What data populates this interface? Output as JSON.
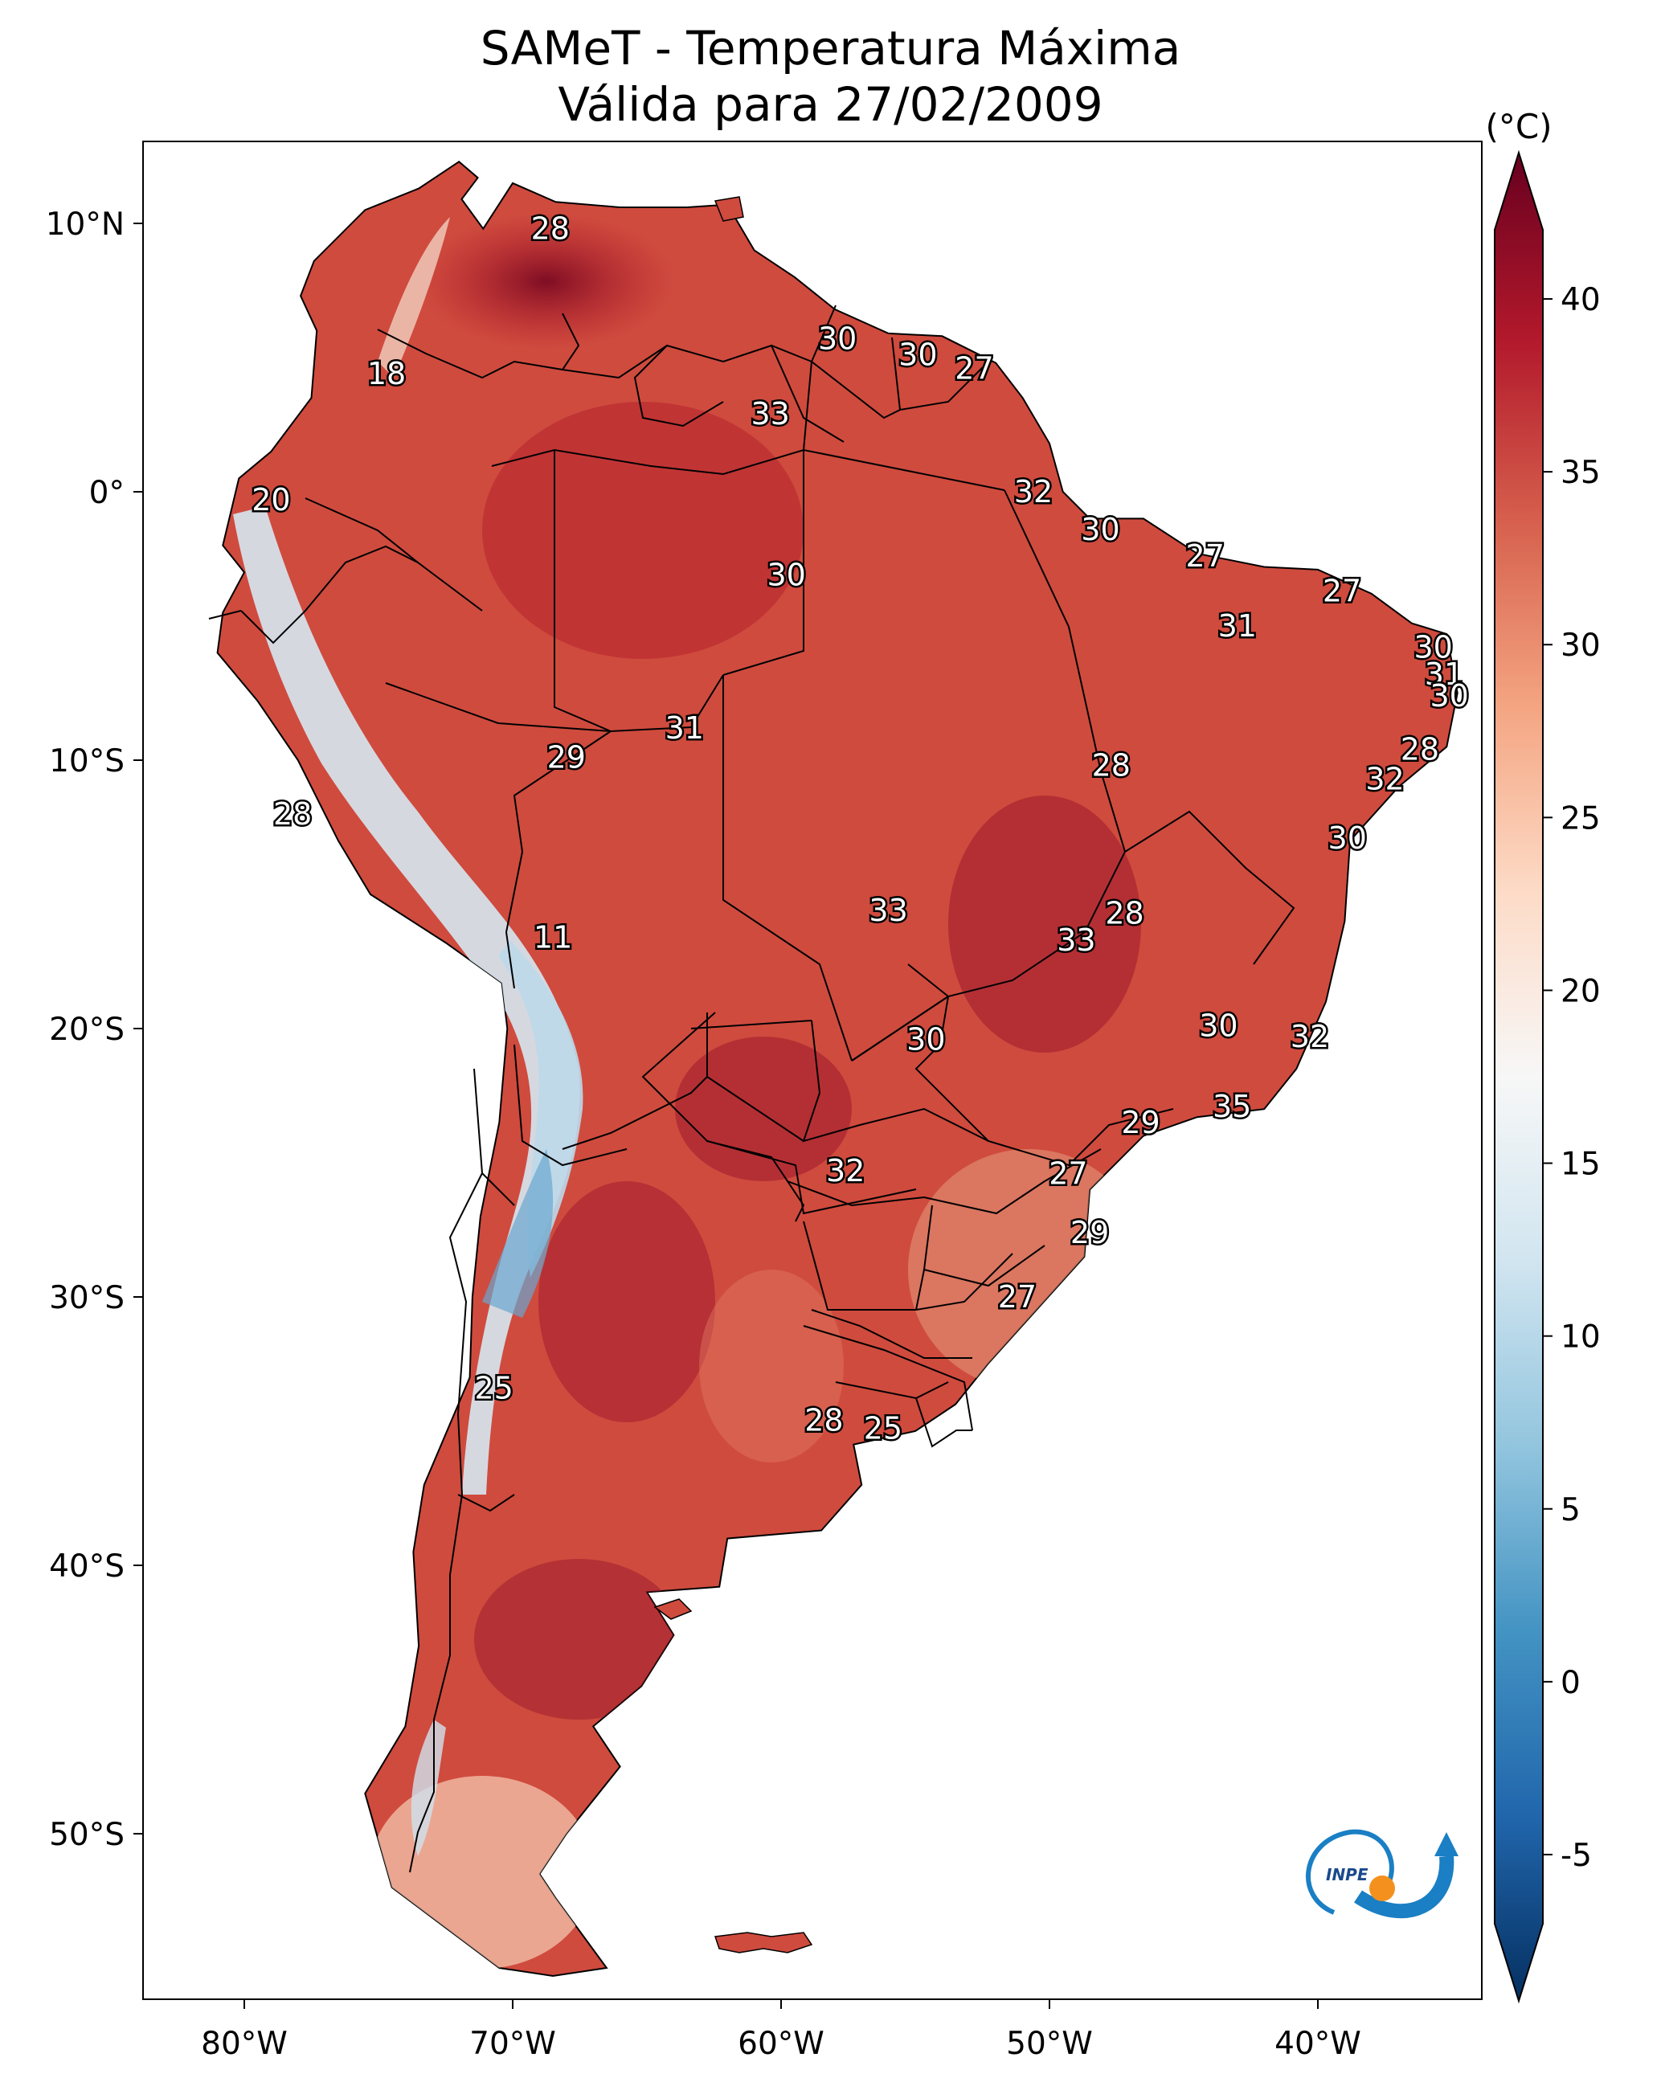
{
  "title": {
    "line1": "SAMeT - Temperatura Máxima",
    "line2": "Válida para 27/02/2009"
  },
  "lon_ticks": [
    "80°W",
    "70°W",
    "60°W",
    "50°W",
    "40°W"
  ],
  "lat_ticks": [
    "10°N",
    "0°",
    "10°S",
    "20°S",
    "30°S",
    "40°S",
    "50°S"
  ],
  "colorbar": {
    "unit": "(°C)",
    "ticks": [
      "-5",
      "0",
      "5",
      "10",
      "15",
      "20",
      "25",
      "30",
      "35",
      "40"
    ],
    "min": -7,
    "max": 42,
    "colors": [
      "#053061",
      "#2166ac",
      "#4393c3",
      "#92c5de",
      "#d1e5f0",
      "#f7f7f7",
      "#fddbc7",
      "#f4a582",
      "#d6604d",
      "#b2182b",
      "#67001f"
    ]
  },
  "logo": {
    "text": "INPE"
  },
  "temperature_labels": [
    {
      "value": "28",
      "lon": -68.6,
      "lat": 9.8
    },
    {
      "value": "30",
      "lon": -57.9,
      "lat": 5.7
    },
    {
      "value": "30",
      "lon": -54.9,
      "lat": 5.1
    },
    {
      "value": "27",
      "lon": -52.8,
      "lat": 4.6
    },
    {
      "value": "18",
      "lon": -74.7,
      "lat": 4.4
    },
    {
      "value": "33",
      "lon": -60.4,
      "lat": 2.9
    },
    {
      "value": "32",
      "lon": -50.6,
      "lat": 0.0
    },
    {
      "value": "20",
      "lon": -79.0,
      "lat": -0.3
    },
    {
      "value": "30",
      "lon": -48.1,
      "lat": -1.4
    },
    {
      "value": "27",
      "lon": -44.2,
      "lat": -2.4
    },
    {
      "value": "30",
      "lon": -59.8,
      "lat": -3.1
    },
    {
      "value": "27",
      "lon": -39.1,
      "lat": -3.7
    },
    {
      "value": "31",
      "lon": -43.0,
      "lat": -5.0
    },
    {
      "value": "30",
      "lon": -35.7,
      "lat": -5.8
    },
    {
      "value": "31",
      "lon": -35.3,
      "lat": -6.8
    },
    {
      "value": "30",
      "lon": -35.1,
      "lat": -7.6
    },
    {
      "value": "31",
      "lon": -63.6,
      "lat": -8.8
    },
    {
      "value": "28",
      "lon": -36.2,
      "lat": -9.6
    },
    {
      "value": "29",
      "lon": -68.0,
      "lat": -9.9
    },
    {
      "value": "28",
      "lon": -47.7,
      "lat": -10.2
    },
    {
      "value": "32",
      "lon": -37.5,
      "lat": -10.7
    },
    {
      "value": "28",
      "lon": -78.2,
      "lat": -12.0
    },
    {
      "value": "30",
      "lon": -38.9,
      "lat": -12.9
    },
    {
      "value": "33",
      "lon": -56.0,
      "lat": -15.6
    },
    {
      "value": "28",
      "lon": -47.2,
      "lat": -15.7
    },
    {
      "value": "11",
      "lon": -68.5,
      "lat": -16.6
    },
    {
      "value": "33",
      "lon": -49.0,
      "lat": -16.7
    },
    {
      "value": "30",
      "lon": -43.7,
      "lat": -19.9
    },
    {
      "value": "30",
      "lon": -54.6,
      "lat": -20.4
    },
    {
      "value": "32",
      "lon": -40.3,
      "lat": -20.3
    },
    {
      "value": "35",
      "lon": -43.2,
      "lat": -22.9
    },
    {
      "value": "29",
      "lon": -46.6,
      "lat": -23.5
    },
    {
      "value": "32",
      "lon": -57.6,
      "lat": -25.3
    },
    {
      "value": "27",
      "lon": -49.3,
      "lat": -25.4
    },
    {
      "value": "29",
      "lon": -48.5,
      "lat": -27.6
    },
    {
      "value": "27",
      "lon": -51.2,
      "lat": -30.0
    },
    {
      "value": "25",
      "lon": -70.7,
      "lat": -33.4
    },
    {
      "value": "28",
      "lon": -58.4,
      "lat": -34.6
    },
    {
      "value": "25",
      "lon": -56.2,
      "lat": -34.9
    }
  ]
}
